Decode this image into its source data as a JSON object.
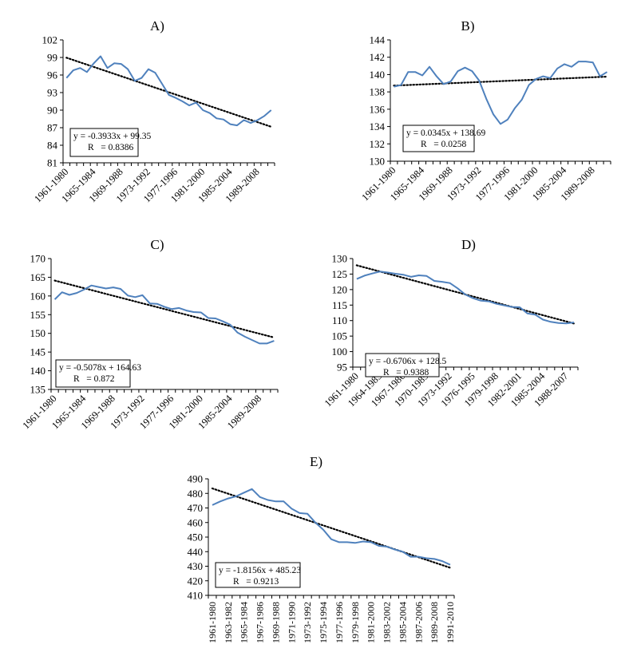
{
  "series_color": "#4f81bd",
  "trend_color": "#000000",
  "chart_data": [
    {
      "panel": "A)",
      "type": "line",
      "title": "A)",
      "xlabel": "",
      "ylabel": "",
      "x": [
        "1961-1980",
        "1962-1981",
        "1963-1982",
        "1964-1983",
        "1965-1984",
        "1966-1985",
        "1967-1986",
        "1968-1987",
        "1969-1988",
        "1970-1989",
        "1971-1990",
        "1972-1991",
        "1973-1992",
        "1974-1993",
        "1975-1994",
        "1976-1995",
        "1977-1996",
        "1978-1997",
        "1979-1998",
        "1980-1999",
        "1981-2000",
        "1982-2001",
        "1983-2002",
        "1984-2003",
        "1985-2004",
        "1986-2005",
        "1987-2006",
        "1988-2007",
        "1989-2008",
        "1990-2009",
        "1991-2010"
      ],
      "x_tick_labels": [
        "1961-1980",
        "1965-1984",
        "1969-1988",
        "1973-1992",
        "1977-1996",
        "1981-2000",
        "1985-2004",
        "1989-2008"
      ],
      "series": [
        {
          "values": [
            95.5,
            96.8,
            97.2,
            96.5,
            98.0,
            99.2,
            97.2,
            98.0,
            97.9,
            97.0,
            95.0,
            95.5,
            97.0,
            96.4,
            94.5,
            92.6,
            92.1,
            91.5,
            90.8,
            91.3,
            90.0,
            89.5,
            88.6,
            88.4,
            87.6,
            87.4,
            88.3,
            87.8,
            88.3,
            89.0,
            90.0
          ]
        }
      ],
      "trendline": {
        "slope": -0.3933,
        "intercept": 99.35
      },
      "equation": "y = -0.3933x + 99.35",
      "r_label": "R   = 0.8386",
      "ylim": [
        81,
        102
      ],
      "yticks": [
        81,
        84,
        87,
        90,
        93,
        96,
        99,
        102
      ]
    },
    {
      "panel": "B)",
      "type": "line",
      "title": "B)",
      "xlabel": "",
      "ylabel": "",
      "x": [
        "1961-1980",
        "1962-1981",
        "1963-1982",
        "1964-1983",
        "1965-1984",
        "1966-1985",
        "1967-1986",
        "1968-1987",
        "1969-1988",
        "1970-1989",
        "1971-1990",
        "1972-1991",
        "1973-1992",
        "1974-1993",
        "1975-1994",
        "1976-1995",
        "1977-1996",
        "1978-1997",
        "1979-1998",
        "1980-1999",
        "1981-2000",
        "1982-2001",
        "1983-2002",
        "1984-2003",
        "1985-2004",
        "1986-2005",
        "1987-2006",
        "1988-2007",
        "1989-2008",
        "1990-2009",
        "1991-2010"
      ],
      "x_tick_labels": [
        "1961-1980",
        "1965-1984",
        "1969-1988",
        "1973-1992",
        "1977-1996",
        "1981-2000",
        "1985-2004",
        "1989-2008"
      ],
      "series": [
        {
          "values": [
            138.6,
            138.8,
            140.3,
            140.3,
            139.9,
            140.9,
            139.8,
            138.9,
            139.2,
            140.4,
            140.8,
            140.4,
            139.3,
            137.2,
            135.4,
            134.3,
            134.8,
            136.1,
            137.1,
            138.8,
            139.5,
            139.8,
            139.6,
            140.7,
            141.2,
            140.9,
            141.5,
            141.5,
            141.4,
            139.8,
            140.3
          ]
        }
      ],
      "trendline": {
        "slope": 0.0345,
        "intercept": 138.69
      },
      "equation": "y = 0.0345x + 138.69",
      "r_label": "R   = 0.0258",
      "ylim": [
        130,
        144
      ],
      "yticks": [
        130,
        132,
        134,
        136,
        138,
        140,
        142,
        144
      ]
    },
    {
      "panel": "C)",
      "type": "line",
      "title": "C)",
      "xlabel": "",
      "ylabel": "",
      "x": [
        "1961-1980",
        "1962-1981",
        "1963-1982",
        "1964-1983",
        "1965-1984",
        "1966-1985",
        "1967-1986",
        "1968-1987",
        "1969-1988",
        "1970-1989",
        "1971-1990",
        "1972-1991",
        "1973-1992",
        "1974-1993",
        "1975-1994",
        "1976-1995",
        "1977-1996",
        "1978-1997",
        "1979-1998",
        "1980-1999",
        "1981-2000",
        "1982-2001",
        "1983-2002",
        "1984-2003",
        "1985-2004",
        "1986-2005",
        "1987-2006",
        "1988-2007",
        "1989-2008",
        "1990-2009",
        "1991-2010"
      ],
      "x_tick_labels": [
        "1961-1980",
        "1965-1984",
        "1969-1988",
        "1973-1992",
        "1977-1996",
        "1981-2000",
        "1985-2004",
        "1989-2008"
      ],
      "series": [
        {
          "values": [
            159.1,
            161.0,
            160.3,
            160.8,
            161.7,
            162.8,
            162.4,
            162.0,
            162.3,
            161.9,
            160.1,
            159.7,
            160.2,
            158.0,
            157.9,
            157.1,
            156.5,
            156.8,
            156.1,
            155.7,
            155.6,
            154.1,
            154.0,
            153.2,
            152.3,
            150.2,
            149.1,
            148.2,
            147.3,
            147.3,
            148.0
          ]
        }
      ],
      "trendline": {
        "slope": -0.5078,
        "intercept": 164.63
      },
      "equation": "y = -0.5078x + 164.63",
      "r_label": "R   = 0.872",
      "ylim": [
        135,
        170
      ],
      "yticks": [
        135,
        140,
        145,
        150,
        155,
        160,
        165,
        170
      ]
    },
    {
      "panel": "D)",
      "type": "line",
      "title": "D)",
      "xlabel": "",
      "ylabel": "",
      "x": [
        "1961-1980",
        "1962-1981",
        "1963-1982",
        "1964-1983",
        "1965-1984",
        "1966-1985",
        "1967-1986",
        "1968-1987",
        "1969-1988",
        "1970-1989",
        "1971-1990",
        "1972-1991",
        "1973-1992",
        "1974-1993",
        "1975-1994",
        "1976-1995",
        "1977-1996",
        "1978-1997",
        "1979-1998",
        "1980-1999",
        "1981-2000",
        "1982-2001",
        "1983-2002",
        "1984-2003",
        "1985-2004",
        "1986-2005",
        "1987-2006",
        "1988-2007",
        "1989-2008"
      ],
      "x_tick_labels": [
        "1961-1980",
        "1964-1983",
        "1967-1986",
        "1970-1989",
        "1973-1992",
        "1976-1995",
        "1979-1998",
        "1982-2001",
        "1985-2004",
        "1988-2007"
      ],
      "series": [
        {
          "values": [
            123.4,
            124.5,
            125.2,
            125.8,
            125.5,
            125.1,
            124.8,
            124.1,
            124.6,
            124.4,
            122.8,
            122.5,
            122.1,
            120.4,
            118.4,
            117.2,
            116.4,
            116.2,
            115.4,
            114.9,
            114.4,
            114.3,
            112.3,
            111.9,
            110.3,
            109.6,
            109.2,
            109.1,
            109.4
          ]
        }
      ],
      "trendline": {
        "slope": -0.6706,
        "intercept": 128.5
      },
      "equation": "y = -0.6706x + 128.5",
      "r_label": "R   = 0.9388",
      "ylim": [
        95,
        130
      ],
      "yticks": [
        95,
        100,
        105,
        110,
        115,
        120,
        125,
        130
      ]
    },
    {
      "panel": "E)",
      "type": "line",
      "title": "E)",
      "xlabel": "",
      "ylabel": "",
      "x": [
        "1961-1980",
        "1962-1981",
        "1963-1982",
        "1964-1983",
        "1965-1984",
        "1966-1985",
        "1967-1986",
        "1968-1987",
        "1969-1988",
        "1970-1989",
        "1971-1990",
        "1972-1991",
        "1973-1992",
        "1974-1993",
        "1975-1994",
        "1976-1995",
        "1977-1996",
        "1978-1997",
        "1979-1998",
        "1980-1999",
        "1981-2000",
        "1982-2001",
        "1983-2002",
        "1984-2003",
        "1985-2004",
        "1986-2005",
        "1987-2006",
        "1988-2007",
        "1989-2008",
        "1990-2009",
        "1991-2010"
      ],
      "x_tick_labels": [
        "1961-1980",
        "1963-1982",
        "1965-1984",
        "1967-1986",
        "1969-1988",
        "1971-1990",
        "1973-1992",
        "1975-1994",
        "1977-1996",
        "1979-1998",
        "1981-2000",
        "1983-2002",
        "1985-2004",
        "1987-2006",
        "1989-2008",
        "1991-2010"
      ],
      "series": [
        {
          "values": [
            472,
            474.5,
            476.5,
            478,
            480.5,
            483,
            477.5,
            475.5,
            474.5,
            474.5,
            469.5,
            466.5,
            466,
            460,
            455,
            448.5,
            446.5,
            446.5,
            446,
            447,
            446.5,
            444,
            443.5,
            441.5,
            440,
            436.5,
            436.5,
            435.5,
            435,
            433.5,
            431
          ]
        }
      ],
      "trendline": {
        "slope": -1.8156,
        "intercept": 485.23
      },
      "equation": "y = -1.8156x + 485.23",
      "r_label": "R   = 0.9213",
      "ylim": [
        410,
        490
      ],
      "yticks": [
        410,
        420,
        430,
        440,
        450,
        460,
        470,
        480,
        490
      ]
    }
  ]
}
